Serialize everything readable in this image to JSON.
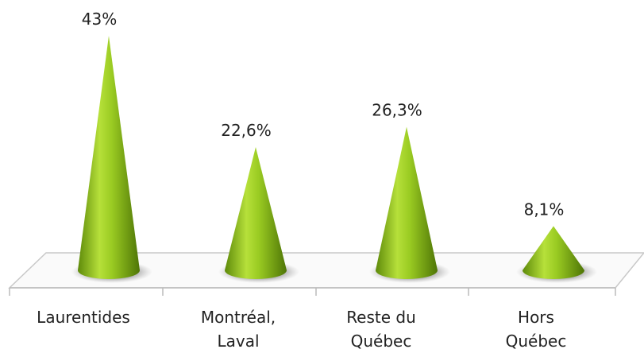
{
  "chart_data": {
    "type": "cone",
    "categories": [
      [
        "Laurentides"
      ],
      [
        "Montréal,",
        "Laval"
      ],
      [
        "Reste du",
        "Québec"
      ],
      [
        "Hors",
        "Québec"
      ]
    ],
    "values": [
      43,
      22.6,
      26.3,
      8.1
    ],
    "value_labels": [
      "43%",
      "22,6%",
      "26,3%",
      "8,1%"
    ],
    "color": "#8dc21f"
  }
}
